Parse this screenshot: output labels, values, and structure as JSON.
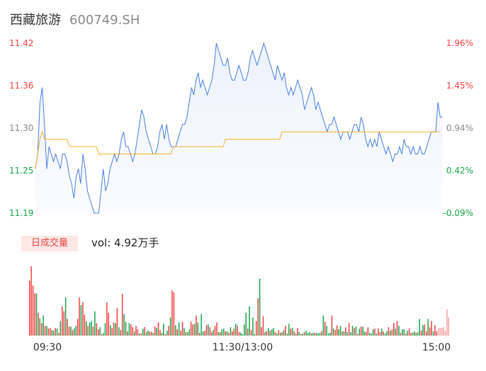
{
  "header": {
    "name": "西藏旅游",
    "code": "600749.SH"
  },
  "volume_legend": {
    "tag": "日成交量",
    "text": "vol: 4.92万手"
  },
  "colors": {
    "price_line": "#4a7ee0",
    "avg_line": "#f5b025",
    "up": "#f23f3f",
    "down": "#1aa34a",
    "neutral": "#888888"
  },
  "chart_data": [
    {
      "type": "line",
      "title": "",
      "price_ticks": [
        "11.42",
        "11.36",
        "11.30",
        "11.25",
        "11.19"
      ],
      "pct_ticks": [
        "1.96%",
        "1.45%",
        "0.94%",
        "0.42%",
        "-0.09%"
      ],
      "ylim": [
        11.19,
        11.42
      ],
      "time_labels": [
        "09:30",
        "11:30/13:00",
        "15:00"
      ],
      "series": [
        {
          "values": [
            11.25,
            11.27,
            11.34,
            11.36,
            11.31,
            11.25,
            11.28,
            11.27,
            11.26,
            11.27,
            11.26,
            11.25,
            11.27,
            11.27,
            11.26,
            11.24,
            11.23,
            11.21,
            11.24,
            11.25,
            11.23,
            11.27,
            11.25,
            11.22,
            11.21,
            11.2,
            11.19,
            11.19,
            11.19,
            11.22,
            11.25,
            11.22,
            11.23,
            11.25,
            11.26,
            11.27,
            11.26,
            11.27,
            11.29,
            11.3,
            11.28,
            11.28,
            11.27,
            11.26,
            11.27,
            11.29,
            11.31,
            11.33,
            11.32,
            11.3,
            11.29,
            11.28,
            11.27,
            11.27,
            11.28,
            11.3,
            11.31,
            11.29,
            11.31,
            11.29,
            11.28,
            11.28,
            11.28,
            11.29,
            11.3,
            11.31,
            11.31,
            11.32,
            11.34,
            11.36,
            11.35,
            11.37,
            11.38,
            11.36,
            11.37,
            11.36,
            11.35,
            11.36,
            11.37,
            11.39,
            11.42,
            11.41,
            11.4,
            11.39,
            11.39,
            11.4,
            11.38,
            11.37,
            11.37,
            11.38,
            11.39,
            11.38,
            11.37,
            11.37,
            11.38,
            11.4,
            11.41,
            11.4,
            11.39,
            11.4,
            11.41,
            11.42,
            11.41,
            11.4,
            11.39,
            11.38,
            11.37,
            11.39,
            11.38,
            11.37,
            11.38,
            11.36,
            11.35,
            11.36,
            11.35,
            11.36,
            11.37,
            11.36,
            11.35,
            11.33,
            11.34,
            11.35,
            11.36,
            11.35,
            11.33,
            11.34,
            11.33,
            11.32,
            11.31,
            11.3,
            11.31,
            11.31,
            11.32,
            11.31,
            11.3,
            11.29,
            11.3,
            11.3,
            11.3,
            11.29,
            11.3,
            11.31,
            11.31,
            11.3,
            11.32,
            11.31,
            11.29,
            11.28,
            11.29,
            11.28,
            11.29,
            11.28,
            11.3,
            11.29,
            11.28,
            11.27,
            11.28,
            11.27,
            11.26,
            11.27,
            11.27,
            11.28,
            11.27,
            11.29,
            11.28,
            11.28,
            11.27,
            11.28,
            11.27,
            11.27,
            11.28,
            11.27,
            11.27,
            11.28,
            11.29,
            11.3,
            11.3,
            11.3,
            11.34,
            11.32,
            11.32
          ],
          "intervals": 182
        },
        {
          "values": [
            11.25,
            11.27,
            11.29,
            11.3,
            11.29,
            11.29,
            11.29,
            11.29,
            11.29,
            11.29,
            11.29,
            11.29,
            11.29,
            11.29,
            11.29,
            11.28,
            11.28,
            11.28,
            11.28,
            11.28,
            11.28,
            11.28,
            11.28,
            11.28,
            11.28,
            11.28,
            11.28,
            11.28,
            11.27,
            11.27,
            11.27,
            11.27,
            11.27,
            11.27,
            11.27,
            11.27,
            11.27,
            11.27,
            11.27,
            11.27,
            11.27,
            11.27,
            11.27,
            11.27,
            11.27,
            11.27,
            11.27,
            11.27,
            11.27,
            11.27,
            11.27,
            11.27,
            11.27,
            11.27,
            11.27,
            11.27,
            11.27,
            11.27,
            11.27,
            11.27,
            11.27,
            11.28,
            11.28,
            11.28,
            11.28,
            11.28,
            11.28,
            11.28,
            11.28,
            11.28,
            11.28,
            11.28,
            11.28,
            11.28,
            11.28,
            11.28,
            11.28,
            11.28,
            11.28,
            11.28,
            11.28,
            11.28,
            11.28,
            11.28,
            11.29,
            11.29,
            11.29,
            11.29,
            11.29,
            11.29,
            11.29,
            11.29,
            11.29,
            11.29,
            11.29,
            11.29,
            11.29,
            11.29,
            11.29,
            11.29,
            11.29,
            11.29,
            11.29,
            11.29,
            11.29,
            11.29,
            11.29,
            11.29,
            11.29,
            11.3,
            11.3,
            11.3,
            11.3,
            11.3,
            11.3,
            11.3,
            11.3,
            11.3,
            11.3,
            11.3,
            11.3,
            11.3,
            11.3,
            11.3,
            11.3,
            11.3,
            11.3,
            11.3,
            11.3,
            11.3,
            11.3,
            11.3,
            11.3,
            11.3,
            11.3,
            11.3,
            11.3,
            11.3,
            11.3,
            11.3,
            11.3,
            11.3,
            11.3,
            11.3,
            11.3,
            11.3,
            11.3,
            11.3,
            11.3,
            11.3,
            11.3,
            11.3,
            11.3,
            11.3,
            11.3,
            11.3,
            11.3,
            11.3,
            11.3,
            11.3,
            11.3,
            11.3,
            11.3,
            11.3,
            11.3,
            11.3,
            11.3,
            11.3,
            11.3,
            11.3,
            11.3,
            11.3,
            11.3,
            11.3,
            11.3,
            11.3,
            11.3,
            11.3,
            11.3,
            11.3
          ],
          "intervals": 182
        }
      ]
    },
    {
      "type": "bar",
      "title": "",
      "ylim": [
        0,
        100
      ],
      "values": [
        79,
        100,
        72,
        61,
        61,
        33,
        25,
        18,
        29,
        14,
        14,
        10,
        11,
        8,
        7,
        11,
        10,
        4,
        21,
        42,
        35,
        55,
        24,
        13,
        13,
        8,
        10,
        14,
        24,
        55,
        44,
        48,
        30,
        21,
        14,
        19,
        21,
        13,
        35,
        18,
        9,
        12,
        2,
        4,
        18,
        48,
        33,
        15,
        11,
        19,
        18,
        40,
        12,
        8,
        60,
        31,
        20,
        6,
        18,
        16,
        12,
        6,
        14,
        9,
        3,
        3,
        10,
        12,
        5,
        7,
        6,
        5,
        4,
        13,
        11,
        19,
        8,
        4,
        17,
        2,
        7,
        14,
        26,
        65,
        62,
        15,
        9,
        19,
        7,
        20,
        11,
        5,
        5,
        9,
        20,
        16,
        17,
        29,
        19,
        4,
        31,
        6,
        7,
        15,
        16,
        12,
        5,
        8,
        14,
        19,
        5,
        5,
        9,
        10,
        6,
        6,
        4,
        12,
        6,
        10,
        17,
        14,
        5,
        4,
        2,
        16,
        33,
        10,
        42,
        8,
        26,
        2,
        21,
        54,
        82,
        12,
        28,
        5,
        6,
        11,
        7,
        9,
        11,
        5,
        3,
        8,
        4,
        5,
        8,
        14,
        3,
        17,
        10,
        11,
        6,
        3,
        11,
        5,
        2,
        3,
        5,
        7,
        4,
        5,
        3,
        4,
        4,
        4,
        3,
        4,
        6,
        29,
        20,
        14,
        3,
        4,
        29,
        10,
        8,
        15,
        9,
        14,
        6,
        6,
        12,
        5,
        18,
        5,
        14,
        11,
        13,
        2,
        10,
        13,
        13,
        6,
        5,
        12,
        4,
        3,
        9,
        10,
        3,
        10,
        5,
        10,
        6,
        3,
        6,
        12,
        7,
        9,
        18,
        10,
        21,
        14,
        4,
        9,
        9,
        3,
        7,
        10,
        4,
        4,
        6,
        4,
        5,
        24,
        7,
        15,
        16,
        6,
        24,
        12,
        21,
        6,
        15,
        6,
        10,
        11,
        11,
        12,
        7,
        38,
        26
      ],
      "direction": [
        1,
        1,
        1,
        1,
        0,
        1,
        0,
        1,
        0,
        1,
        0,
        1,
        1,
        0,
        0,
        1,
        0,
        1,
        0,
        1,
        1,
        0,
        1,
        1,
        0,
        1,
        0,
        0,
        1,
        1,
        0,
        1,
        1,
        0,
        1,
        0,
        0,
        1,
        0,
        1,
        1,
        0,
        1,
        0,
        0,
        1,
        1,
        0,
        1,
        1,
        0,
        1,
        0,
        1,
        1,
        0,
        0,
        1,
        0,
        1,
        1,
        0,
        1,
        1,
        0,
        1,
        0,
        1,
        0,
        0,
        1,
        1,
        0,
        1,
        0,
        1,
        1,
        0,
        0,
        1,
        0,
        1,
        0,
        1,
        1,
        0,
        1,
        0,
        1,
        1,
        0,
        1,
        0,
        0,
        1,
        1,
        0,
        1,
        0,
        1,
        0,
        0,
        1,
        1,
        0,
        1,
        1,
        0,
        1,
        1,
        0,
        1,
        0,
        0,
        1,
        0,
        1,
        0,
        1,
        1,
        0,
        1,
        1,
        0,
        0,
        0,
        0,
        1,
        0,
        1,
        0,
        0,
        1,
        1,
        0,
        1,
        1,
        0,
        1,
        0,
        1,
        0,
        0,
        1,
        0,
        1,
        0,
        1,
        0,
        1,
        0,
        0,
        1,
        0,
        1,
        0,
        1,
        0,
        1,
        0,
        1,
        0,
        0,
        0,
        1,
        0,
        1,
        0,
        0,
        0,
        1,
        0,
        1,
        0,
        0,
        0,
        1,
        0,
        1,
        1,
        0,
        0,
        1,
        0,
        1,
        0,
        1,
        0,
        0,
        1,
        0,
        1,
        0,
        1,
        0,
        0,
        1,
        1,
        0,
        0,
        0,
        1,
        0,
        1,
        1,
        0,
        1,
        0,
        0,
        1,
        0,
        1,
        1,
        0,
        1,
        0,
        1,
        0,
        0,
        1,
        0,
        1,
        1,
        0,
        0,
        1,
        0,
        0,
        1,
        0,
        1,
        1,
        0,
        1,
        1,
        0,
        1,
        1,
        2
      ]
    }
  ]
}
